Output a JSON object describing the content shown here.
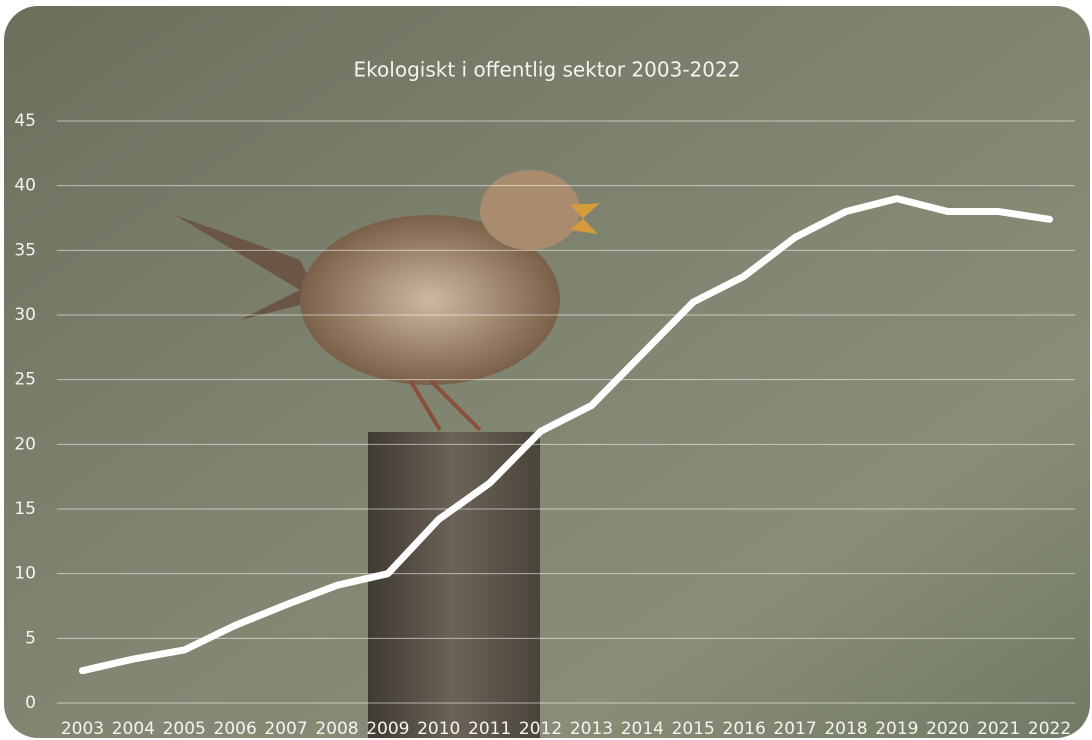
{
  "chart_data": {
    "type": "line",
    "title": "Ekologiskt i offentlig sektor 2003-2022",
    "categories": [
      "2003",
      "2004",
      "2005",
      "2006",
      "2007",
      "2008",
      "2009",
      "2010",
      "2011",
      "2012",
      "2013",
      "2014",
      "2015",
      "2016",
      "2017",
      "2018",
      "2019",
      "2020",
      "2021",
      "2022"
    ],
    "values": [
      2.5,
      3.4,
      4.1,
      6,
      7.6,
      9.1,
      10,
      14.2,
      17,
      21,
      23,
      27,
      31,
      33,
      36,
      38,
      39,
      38,
      38,
      37.4
    ],
    "color": "#ffffff",
    "ylim": [
      0,
      45
    ],
    "yticks": [
      0,
      5,
      10,
      15,
      20,
      25,
      30,
      35,
      40,
      45
    ],
    "grid": true
  }
}
